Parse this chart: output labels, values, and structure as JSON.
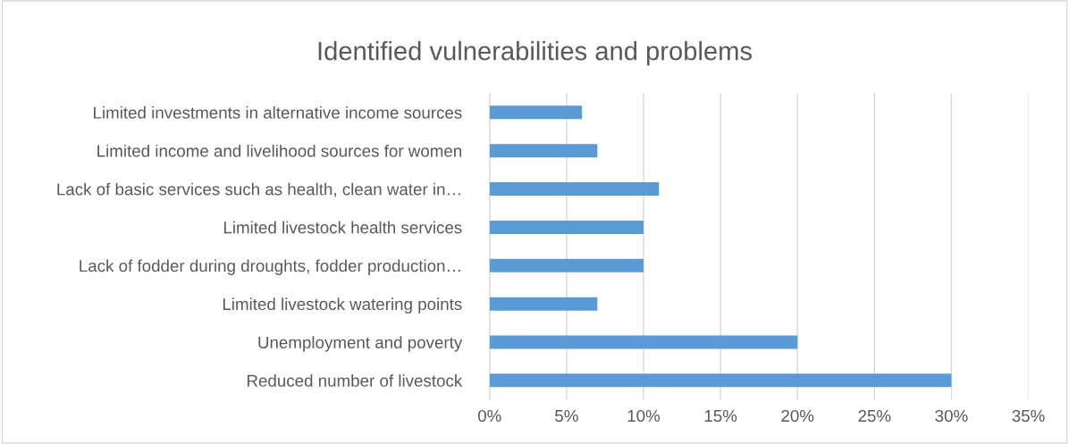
{
  "chart_data": {
    "type": "bar",
    "orientation": "horizontal",
    "title": "Identified vulnerabilities and problems",
    "categories": [
      "Limited investments in alternative income sources",
      "Limited income and livelihood sources for women",
      "Lack of basic services such as health, clean water in…",
      "Limited livestock health services",
      "Lack of fodder during droughts, fodder production…",
      "Limited livestock watering points",
      "Unemployment and poverty",
      "Reduced number of livestock"
    ],
    "values": [
      6,
      7,
      11,
      10,
      10,
      7,
      20,
      30
    ],
    "color": "#5b9bd5",
    "xlim": [
      0,
      35
    ],
    "xticks": [
      {
        "value": 0,
        "label": "0%"
      },
      {
        "value": 5,
        "label": "5%"
      },
      {
        "value": 10,
        "label": "10%"
      },
      {
        "value": 15,
        "label": "15%"
      },
      {
        "value": 20,
        "label": "20%"
      },
      {
        "value": 25,
        "label": "25%"
      },
      {
        "value": 30,
        "label": "30%"
      },
      {
        "value": 35,
        "label": "35%"
      }
    ],
    "grid": "x",
    "legend": false
  }
}
